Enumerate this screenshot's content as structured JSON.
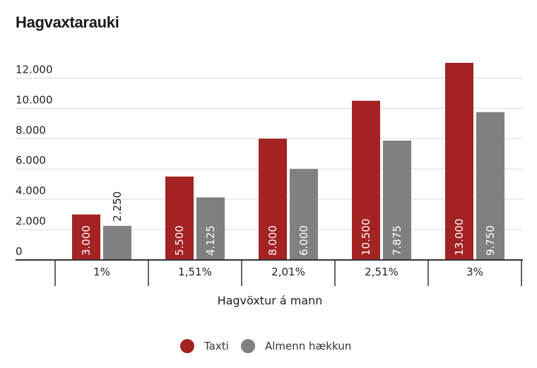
{
  "chart_data": {
    "type": "bar",
    "title": "Hagvaxtarauki",
    "xlabel": "Hagvöxtur á mann",
    "ylabel": "",
    "ylim": [
      0,
      13000
    ],
    "yticks": [
      0,
      2000,
      4000,
      6000,
      8000,
      10000,
      12000
    ],
    "ytick_labels": [
      "0",
      "2.000",
      "4.000",
      "6.000",
      "8.000",
      "10.000",
      "12.000"
    ],
    "categories": [
      "1%",
      "1,51%",
      "2,01%",
      "2,51%",
      "3%"
    ],
    "series": [
      {
        "name": "Taxti",
        "color": "#a32222",
        "values": [
          3000,
          5500,
          8000,
          10500,
          13000
        ],
        "labels": [
          "3.000",
          "5.500",
          "8.000",
          "10.500",
          "13.000"
        ]
      },
      {
        "name": "Almenn hækkun",
        "color": "#808080",
        "values": [
          2250,
          4125,
          6000,
          7875,
          9750
        ],
        "labels": [
          "2.250",
          "4.125",
          "6.000",
          "7.875",
          "9.750"
        ]
      }
    ],
    "grid": true,
    "legend": "bottom-center"
  }
}
